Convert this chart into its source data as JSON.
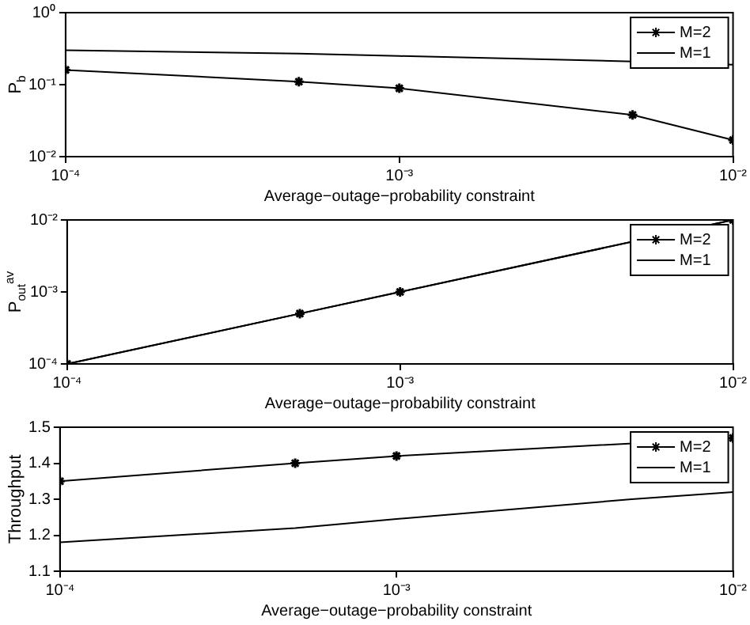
{
  "chart_data": [
    {
      "type": "line",
      "xlabel": "Average−outage−probability constraint",
      "ylabel": "P$_{b}$",
      "log": "xy",
      "legend": "top right",
      "grid": false,
      "xlim": [
        0.0001,
        0.01
      ],
      "xticks": [
        {
          "value": 0.0001,
          "label": "10⁻⁴"
        },
        {
          "value": 0.001,
          "label": "10⁻³"
        },
        {
          "value": 0.01,
          "label": "10⁻²"
        }
      ],
      "ylim": [
        0.01,
        1
      ],
      "yticks": [
        {
          "value": 0.01,
          "label": "10⁻²"
        },
        {
          "value": 0.1,
          "label": "10⁻¹"
        },
        {
          "value": 1,
          "label": "10⁰"
        }
      ],
      "series": [
        {
          "name": "M=2",
          "color": "#000000",
          "marker": "cross",
          "x": [
            0.0001,
            0.0005,
            0.001,
            0.005,
            0.01
          ],
          "values": [
            0.16,
            0.11,
            0.089,
            0.038,
            0.017
          ]
        },
        {
          "name": "M=1",
          "color": "#000000",
          "marker": "none",
          "x": [
            0.0001,
            0.0005,
            0.001,
            0.005,
            0.01
          ],
          "values": [
            0.3,
            0.27,
            0.25,
            0.21,
            0.19
          ]
        }
      ]
    },
    {
      "type": "line",
      "xlabel": "Average−outage−probability constraint",
      "ylabel": "P$_{out}$$^{av}$",
      "log": "xy",
      "legend": "top right",
      "grid": false,
      "xlim": [
        0.0001,
        0.01
      ],
      "xticks": [
        {
          "value": 0.0001,
          "label": "10⁻⁴"
        },
        {
          "value": 0.001,
          "label": "10⁻³"
        },
        {
          "value": 0.01,
          "label": "10⁻²"
        }
      ],
      "ylim": [
        0.0001,
        0.01
      ],
      "yticks": [
        {
          "value": 0.0001,
          "label": "10⁻⁴"
        },
        {
          "value": 0.001,
          "label": "10⁻³"
        },
        {
          "value": 0.01,
          "label": "10⁻²"
        }
      ],
      "series": [
        {
          "name": "M=2",
          "color": "#000000",
          "marker": "cross",
          "x": [
            0.0001,
            0.0005,
            0.001,
            0.01
          ],
          "values": [
            0.0001,
            0.0005,
            0.001,
            0.01
          ]
        },
        {
          "name": "M=1",
          "color": "#000000",
          "marker": "none",
          "x": [
            0.0001,
            0.01
          ],
          "values": [
            0.0001,
            0.01
          ]
        }
      ]
    },
    {
      "type": "line",
      "xlabel": "Average−outage−probability constraint",
      "ylabel": "Throughput",
      "log": "x",
      "legend": "top right",
      "grid": false,
      "xlim": [
        0.0001,
        0.01
      ],
      "xticks": [
        {
          "value": 0.0001,
          "label": "10⁻⁴"
        },
        {
          "value": 0.001,
          "label": "10⁻³"
        },
        {
          "value": 0.01,
          "label": "10⁻²"
        }
      ],
      "ylim": [
        1.1,
        1.5
      ],
      "yticks": [
        1.1,
        1.2,
        1.3,
        1.4,
        1.5
      ],
      "series": [
        {
          "name": "M=2",
          "color": "#000000",
          "marker": "cross",
          "x": [
            0.0001,
            0.0005,
            0.001,
            0.01
          ],
          "values": [
            1.35,
            1.4,
            1.42,
            1.47
          ]
        },
        {
          "name": "M=1",
          "color": "#000000",
          "marker": "none",
          "x": [
            0.0001,
            0.0005,
            0.001,
            0.005,
            0.01
          ],
          "values": [
            1.18,
            1.22,
            1.245,
            1.3,
            1.32
          ]
        }
      ]
    }
  ]
}
